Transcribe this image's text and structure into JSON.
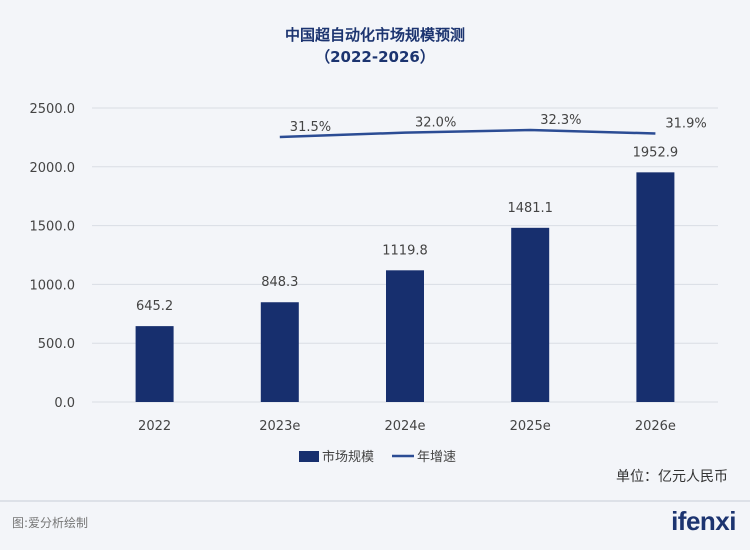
{
  "chart_data": {
    "type": "bar",
    "title": "中国超自动化市场规模预测",
    "subtitle": "（2022-2026）",
    "categories": [
      "2022",
      "2023e",
      "2024e",
      "2025e",
      "2026e"
    ],
    "series": [
      {
        "name": "市场规模",
        "type": "bar",
        "values": [
          645.2,
          848.3,
          1119.8,
          1481.1,
          1952.9
        ],
        "labels": [
          "645.2",
          "848.3",
          "1119.8",
          "1481.1",
          "1952.9"
        ]
      },
      {
        "name": "年增速",
        "type": "line",
        "values": [
          null,
          31.5,
          32.0,
          32.3,
          31.9
        ],
        "labels": [
          "",
          "31.5%",
          "32.0%",
          "32.3%",
          "31.9%"
        ]
      }
    ],
    "yticks": [
      "0.0",
      "500.0",
      "1000.0",
      "1500.0",
      "2000.0",
      "2500.0"
    ],
    "ylim": [
      0,
      2500
    ],
    "grid": true,
    "legend": "bottom-center",
    "unit": "单位：亿元人民币",
    "colors": {
      "bar": "#172f6e",
      "line": "#2b4c94"
    }
  },
  "footer": {
    "source": "图:爱分析绘制",
    "logo": "ifenxi"
  }
}
